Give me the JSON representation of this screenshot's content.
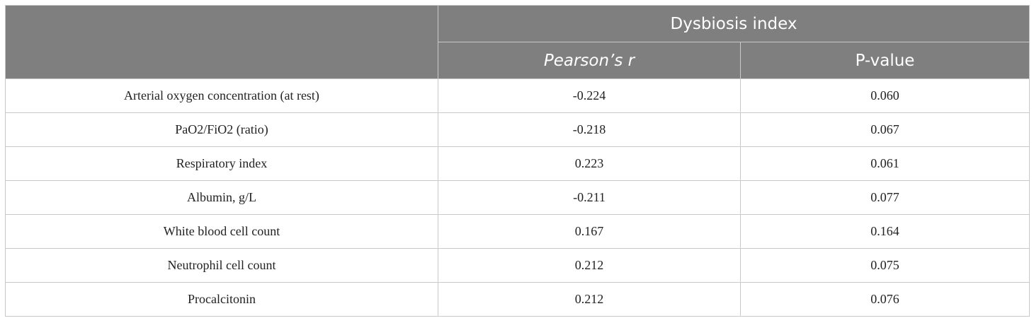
{
  "table": {
    "header": {
      "group_label": "Dysbiosis index",
      "col_r": "Pearson’s r",
      "col_p": "P-value"
    },
    "rows": [
      {
        "label": "Arterial oxygen concentration (at rest)",
        "r": "-0.224",
        "p": "0.060"
      },
      {
        "label": "PaO2/FiO2 (ratio)",
        "r": "-0.218",
        "p": "0.067"
      },
      {
        "label": "Respiratory index",
        "r": "0.223",
        "p": "0.061"
      },
      {
        "label": "Albumin, g/L",
        "r": "-0.211",
        "p": "0.077"
      },
      {
        "label": "White blood cell count",
        "r": "0.167",
        "p": "0.164"
      },
      {
        "label": "Neutrophil cell count",
        "r": "0.212",
        "p": "0.075"
      },
      {
        "label": "Procalcitonin",
        "r": "0.212",
        "p": "0.076"
      }
    ]
  }
}
